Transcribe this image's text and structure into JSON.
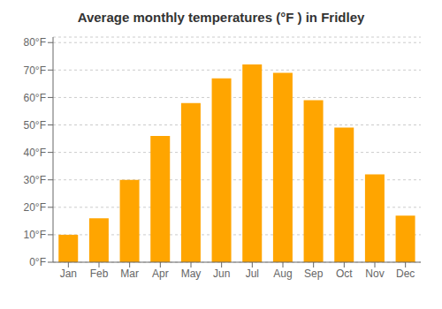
{
  "chart_data": {
    "type": "bar",
    "title": "Average monthly temperatures (°F ) in Fridley",
    "categories": [
      "Jan",
      "Feb",
      "Mar",
      "Apr",
      "May",
      "Jun",
      "Jul",
      "Aug",
      "Sep",
      "Oct",
      "Nov",
      "Dec"
    ],
    "values": [
      10,
      16,
      30,
      46,
      58,
      67,
      72,
      69,
      59,
      49,
      32,
      17
    ],
    "color": "#FFA500",
    "ylim": [
      0,
      82
    ],
    "yticks": [
      {
        "value": 0,
        "label": "0°F"
      },
      {
        "value": 10,
        "label": "10°F"
      },
      {
        "value": 20,
        "label": "20°F"
      },
      {
        "value": 30,
        "label": "30°F"
      },
      {
        "value": 40,
        "label": "40°F"
      },
      {
        "value": 50,
        "label": "50°F"
      },
      {
        "value": 60,
        "label": "60°F"
      },
      {
        "value": 70,
        "label": "70°F"
      },
      {
        "value": 80,
        "label": "80°F"
      }
    ],
    "grid": true
  }
}
